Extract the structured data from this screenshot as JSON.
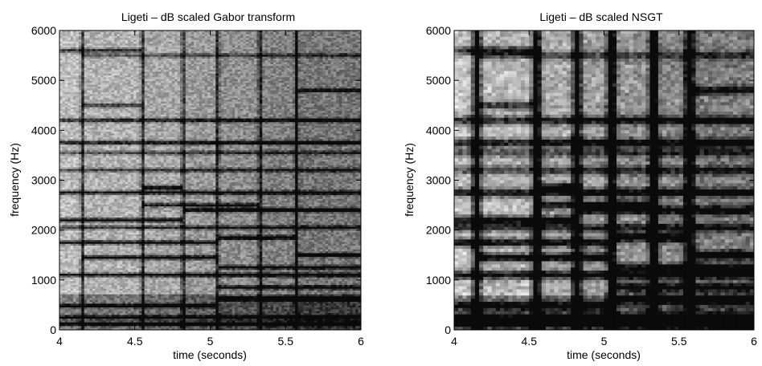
{
  "chart_data": [
    {
      "type": "heatmap",
      "title": "Ligeti – dB scaled Gabor transform",
      "xlabel": "time (seconds)",
      "ylabel": "frequency (Hz)",
      "xlim": [
        4,
        6
      ],
      "ylim": [
        0,
        6000
      ],
      "xticks": [
        "4",
        "4.5",
        "5",
        "5.5",
        "6"
      ],
      "yticks": [
        "0",
        "1000",
        "2000",
        "3000",
        "4000",
        "5000",
        "6000"
      ],
      "colormap": "grayscale (dark = high dB)",
      "onsets": [
        4.15,
        4.55,
        4.82,
        5.05,
        5.33,
        5.57
      ],
      "partials": [
        {
          "hz": 120,
          "start": 4.0,
          "end": 6.0,
          "level": 0.75
        },
        {
          "hz": 250,
          "start": 4.0,
          "end": 6.0,
          "level": 0.6
        },
        {
          "hz": 480,
          "start": 4.0,
          "end": 5.05,
          "level": 0.65
        },
        {
          "hz": 620,
          "start": 5.05,
          "end": 6.0,
          "level": 0.8
        },
        {
          "hz": 850,
          "start": 5.05,
          "end": 6.0,
          "level": 0.7
        },
        {
          "hz": 1100,
          "start": 4.0,
          "end": 6.0,
          "level": 0.75
        },
        {
          "hz": 1250,
          "start": 5.05,
          "end": 6.0,
          "level": 0.6
        },
        {
          "hz": 1450,
          "start": 4.15,
          "end": 5.05,
          "level": 0.85
        },
        {
          "hz": 1500,
          "start": 5.57,
          "end": 6.0,
          "level": 0.8
        },
        {
          "hz": 1750,
          "start": 4.0,
          "end": 5.05,
          "level": 0.75
        },
        {
          "hz": 1850,
          "start": 5.05,
          "end": 5.57,
          "level": 0.85
        },
        {
          "hz": 2050,
          "start": 4.0,
          "end": 6.0,
          "level": 0.55
        },
        {
          "hz": 2200,
          "start": 4.0,
          "end": 4.82,
          "level": 0.8
        },
        {
          "hz": 2400,
          "start": 4.82,
          "end": 6.0,
          "level": 0.75
        },
        {
          "hz": 2500,
          "start": 4.55,
          "end": 5.33,
          "level": 0.65
        },
        {
          "hz": 2750,
          "start": 4.0,
          "end": 6.0,
          "level": 0.7
        },
        {
          "hz": 2850,
          "start": 4.55,
          "end": 4.82,
          "level": 0.8
        },
        {
          "hz": 3200,
          "start": 4.0,
          "end": 6.0,
          "level": 0.5
        },
        {
          "hz": 3550,
          "start": 4.0,
          "end": 6.0,
          "level": 0.45
        },
        {
          "hz": 3750,
          "start": 4.0,
          "end": 6.0,
          "level": 0.7
        },
        {
          "hz": 4200,
          "start": 4.0,
          "end": 6.0,
          "level": 0.65
        },
        {
          "hz": 4500,
          "start": 4.15,
          "end": 4.55,
          "level": 0.55
        },
        {
          "hz": 4800,
          "start": 5.57,
          "end": 6.0,
          "level": 0.55
        },
        {
          "hz": 5500,
          "start": 4.15,
          "end": 6.0,
          "level": 0.4
        },
        {
          "hz": 5600,
          "start": 4.0,
          "end": 4.55,
          "level": 0.6
        }
      ]
    },
    {
      "type": "heatmap",
      "title": "Ligeti – dB scaled NSGT",
      "xlabel": "time (seconds)",
      "ylabel": "frequency (Hz)",
      "xlim": [
        4,
        6
      ],
      "ylim": [
        0,
        6000
      ],
      "xticks": [
        "4",
        "4.5",
        "5",
        "5.5",
        "6"
      ],
      "yticks": [
        "0",
        "1000",
        "2000",
        "3000",
        "4000",
        "5000",
        "6000"
      ],
      "colormap": "grayscale (dark = high dB)",
      "onsets": [
        4.15,
        4.55,
        4.82,
        5.05,
        5.33,
        5.57
      ],
      "partials": [
        {
          "hz": 120,
          "start": 4.0,
          "end": 6.0,
          "level": 0.75
        },
        {
          "hz": 250,
          "start": 4.0,
          "end": 6.0,
          "level": 0.6
        },
        {
          "hz": 480,
          "start": 4.0,
          "end": 5.05,
          "level": 0.65
        },
        {
          "hz": 620,
          "start": 5.05,
          "end": 6.0,
          "level": 0.8
        },
        {
          "hz": 850,
          "start": 5.05,
          "end": 6.0,
          "level": 0.7
        },
        {
          "hz": 1100,
          "start": 4.0,
          "end": 6.0,
          "level": 0.75
        },
        {
          "hz": 1250,
          "start": 5.05,
          "end": 6.0,
          "level": 0.6
        },
        {
          "hz": 1450,
          "start": 4.15,
          "end": 5.05,
          "level": 0.85
        },
        {
          "hz": 1500,
          "start": 5.57,
          "end": 6.0,
          "level": 0.8
        },
        {
          "hz": 1750,
          "start": 4.0,
          "end": 5.05,
          "level": 0.75
        },
        {
          "hz": 1850,
          "start": 5.05,
          "end": 5.57,
          "level": 0.85
        },
        {
          "hz": 2050,
          "start": 4.0,
          "end": 6.0,
          "level": 0.55
        },
        {
          "hz": 2200,
          "start": 4.0,
          "end": 4.82,
          "level": 0.8
        },
        {
          "hz": 2400,
          "start": 4.82,
          "end": 6.0,
          "level": 0.75
        },
        {
          "hz": 2500,
          "start": 4.55,
          "end": 5.33,
          "level": 0.65
        },
        {
          "hz": 2750,
          "start": 4.0,
          "end": 6.0,
          "level": 0.7
        },
        {
          "hz": 2850,
          "start": 4.55,
          "end": 4.82,
          "level": 0.8
        },
        {
          "hz": 3200,
          "start": 4.0,
          "end": 6.0,
          "level": 0.5
        },
        {
          "hz": 3550,
          "start": 4.0,
          "end": 6.0,
          "level": 0.45
        },
        {
          "hz": 3750,
          "start": 4.0,
          "end": 6.0,
          "level": 0.7
        },
        {
          "hz": 4200,
          "start": 4.0,
          "end": 6.0,
          "level": 0.65
        },
        {
          "hz": 4500,
          "start": 4.15,
          "end": 4.55,
          "level": 0.55
        },
        {
          "hz": 4800,
          "start": 5.57,
          "end": 6.0,
          "level": 0.55
        },
        {
          "hz": 5500,
          "start": 4.15,
          "end": 6.0,
          "level": 0.4
        },
        {
          "hz": 5600,
          "start": 4.0,
          "end": 4.55,
          "level": 0.6
        }
      ]
    }
  ]
}
